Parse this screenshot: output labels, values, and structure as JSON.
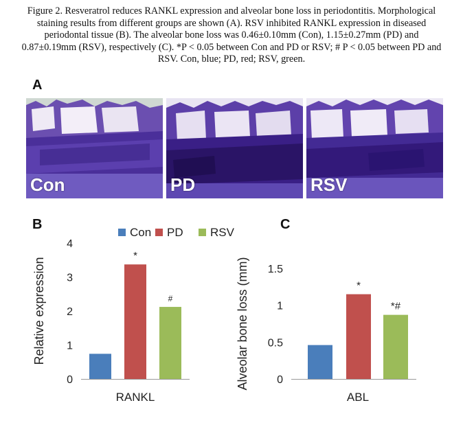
{
  "caption": {
    "text": "Figure 2. Resveratrol reduces RANKL expression and alveolar bone loss in periodontitis. Morphological staining results from different groups are shown (A). RSV inhibited RANKL expression in diseased periodontal tissue (B). The alveolar bone loss was 0.46±0.10mm (Con), 1.15±0.27mm (PD) and 0.87±0.19mm (RSV), respectively (C). *P < 0.05 between Con and PD or RSV; # P < 0.05 between PD and RSV. Con, blue; PD, red; RSV, green."
  },
  "panels": {
    "a": "A",
    "b": "B",
    "c": "C"
  },
  "photos": [
    {
      "label": "Con"
    },
    {
      "label": "PD"
    },
    {
      "label": "RSV"
    }
  ],
  "colors": {
    "con": "#4a7ebb",
    "pd": "#c0504d",
    "rsv": "#9bbb59"
  },
  "chart_data": [
    {
      "type": "bar",
      "panel": "B",
      "categories": [
        "RANKL"
      ],
      "series": [
        {
          "name": "Con",
          "values": [
            0.74
          ],
          "annotation": ""
        },
        {
          "name": "PD",
          "values": [
            3.37
          ],
          "annotation": "*"
        },
        {
          "name": "RSV",
          "values": [
            2.12
          ],
          "annotation": "#"
        }
      ],
      "xlabel": "RANKL",
      "ylabel": "Relative expression",
      "ylim": [
        0,
        4
      ],
      "yticks": [
        0,
        1,
        2,
        3,
        4
      ],
      "legend": "top"
    },
    {
      "type": "bar",
      "panel": "C",
      "categories": [
        "ABL"
      ],
      "series": [
        {
          "name": "Con",
          "values": [
            0.46
          ],
          "annotation": ""
        },
        {
          "name": "PD",
          "values": [
            1.15
          ],
          "annotation": "*"
        },
        {
          "name": "RSV",
          "values": [
            0.87
          ],
          "annotation": "*#"
        }
      ],
      "xlabel": "ABL",
      "ylabel": "Alveolar bone loss (mm)",
      "ylim": [
        0,
        1.5
      ],
      "yticks": [
        0,
        0.5,
        1,
        1.5
      ],
      "legend": "none"
    }
  ]
}
